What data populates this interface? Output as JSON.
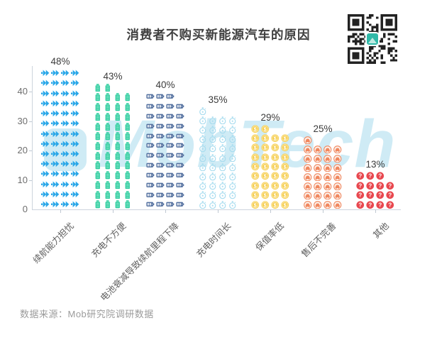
{
  "title": "消费者不购买新能源汽车的原因",
  "source": "数据来源：Mob研究院调研数据",
  "watermark": {
    "logo": "mobtech-logo",
    "text": "MobTech"
  },
  "chart_data": {
    "type": "bar",
    "subtype": "pictogram",
    "title": "消费者不购买新能源汽车的原因",
    "categories": [
      "续航能力担忧",
      "充电不方便",
      "电池衰减导致续航里程下降",
      "充电时间长",
      "保值率低",
      "售后不完善",
      "其他"
    ],
    "values": [
      48,
      43,
      40,
      35,
      29,
      25,
      13
    ],
    "value_labels": [
      "48%",
      "43%",
      "40%",
      "35%",
      "29%",
      "25%",
      "13%"
    ],
    "icons": [
      "fast-forward-icon",
      "battery-vertical-icon",
      "charging-battery-icon",
      "stopwatch-icon",
      "coin-icon",
      "car-icon",
      "question-icon"
    ],
    "colors": [
      "#29a7e8",
      "#2fce9f",
      "#53709f",
      "#a7dcef",
      "#f6cd4b",
      "#f0875f",
      "#e8484f"
    ],
    "icon_counts": [
      56,
      50,
      47,
      41,
      34,
      29,
      15
    ],
    "icons_per_row": 4,
    "xlabel": "",
    "ylabel": "",
    "ylim": [
      0,
      48
    ],
    "yticks": [
      0,
      10,
      20,
      30,
      40
    ],
    "grid": false,
    "legend": false
  }
}
